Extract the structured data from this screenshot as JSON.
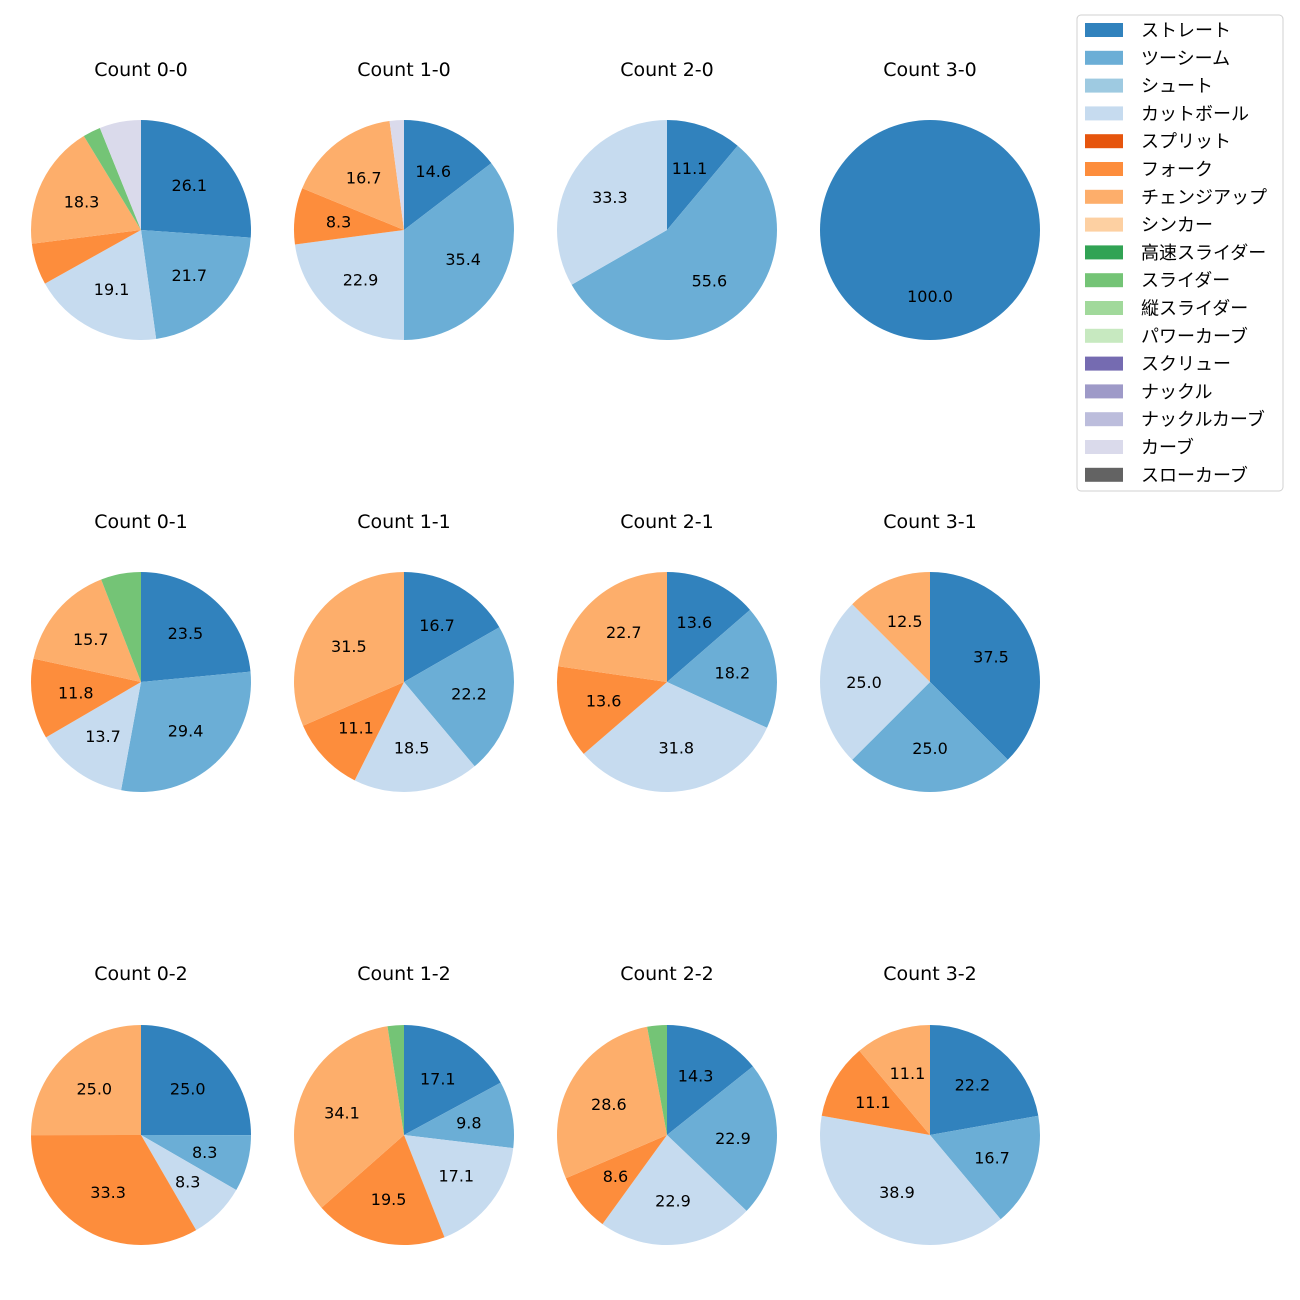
{
  "colors": {
    "ストレート": "#3182bd",
    "ツーシーム": "#6baed6",
    "シュート": "#9ecae1",
    "カットボール": "#c6dbef",
    "スプリット": "#e6550d",
    "フォーク": "#fd8d3c",
    "チェンジアップ": "#fdae6b",
    "シンカー": "#fdd0a2",
    "高速スライダー": "#31a354",
    "スライダー": "#74c476",
    "縦スライダー": "#a1d99b",
    "パワーカーブ": "#c7e9c0",
    "スクリュー": "#756bb1",
    "ナックル": "#9e9ac8",
    "ナックルカーブ": "#bcbddc",
    "カーブ": "#dadaeb",
    "スローカーブ": "#636363"
  },
  "chart_data": {
    "type": "pie",
    "legend_position": "top-right",
    "legend": [
      "ストレート",
      "ツーシーム",
      "シュート",
      "カットボール",
      "スプリット",
      "フォーク",
      "チェンジアップ",
      "シンカー",
      "高速スライダー",
      "スライダー",
      "縦スライダー",
      "パワーカーブ",
      "スクリュー",
      "ナックル",
      "ナックルカーブ",
      "カーブ",
      "スローカーブ"
    ],
    "charts": [
      {
        "title": "Count 0-0",
        "slices": [
          {
            "pitch": "ストレート",
            "value": 26.1,
            "label": "26.1"
          },
          {
            "pitch": "ツーシーム",
            "value": 21.7,
            "label": "21.7"
          },
          {
            "pitch": "カットボール",
            "value": 19.1,
            "label": "19.1"
          },
          {
            "pitch": "フォーク",
            "value": 6.1,
            "label": ""
          },
          {
            "pitch": "チェンジアップ",
            "value": 18.3,
            "label": "18.3"
          },
          {
            "pitch": "スライダー",
            "value": 2.6,
            "label": ""
          },
          {
            "pitch": "カーブ",
            "value": 6.1,
            "label": ""
          }
        ]
      },
      {
        "title": "Count 1-0",
        "slices": [
          {
            "pitch": "ストレート",
            "value": 14.6,
            "label": "14.6"
          },
          {
            "pitch": "ツーシーム",
            "value": 35.4,
            "label": "35.4"
          },
          {
            "pitch": "カットボール",
            "value": 22.9,
            "label": "22.9"
          },
          {
            "pitch": "フォーク",
            "value": 8.3,
            "label": "8.3"
          },
          {
            "pitch": "チェンジアップ",
            "value": 16.7,
            "label": "16.7"
          },
          {
            "pitch": "カーブ",
            "value": 2.1,
            "label": ""
          }
        ]
      },
      {
        "title": "Count 2-0",
        "slices": [
          {
            "pitch": "ストレート",
            "value": 11.1,
            "label": "11.1"
          },
          {
            "pitch": "ツーシーム",
            "value": 55.6,
            "label": "55.6"
          },
          {
            "pitch": "カットボール",
            "value": 33.3,
            "label": "33.3"
          }
        ]
      },
      {
        "title": "Count 3-0",
        "slices": [
          {
            "pitch": "ストレート",
            "value": 100.0,
            "label": "100.0"
          }
        ]
      },
      {
        "title": "Count 0-1",
        "slices": [
          {
            "pitch": "ストレート",
            "value": 23.5,
            "label": "23.5"
          },
          {
            "pitch": "ツーシーム",
            "value": 29.4,
            "label": "29.4"
          },
          {
            "pitch": "カットボール",
            "value": 13.7,
            "label": "13.7"
          },
          {
            "pitch": "フォーク",
            "value": 11.8,
            "label": "11.8"
          },
          {
            "pitch": "チェンジアップ",
            "value": 15.7,
            "label": "15.7"
          },
          {
            "pitch": "スライダー",
            "value": 5.9,
            "label": ""
          }
        ]
      },
      {
        "title": "Count 1-1",
        "slices": [
          {
            "pitch": "ストレート",
            "value": 16.7,
            "label": "16.7"
          },
          {
            "pitch": "ツーシーム",
            "value": 22.2,
            "label": "22.2"
          },
          {
            "pitch": "カットボール",
            "value": 18.5,
            "label": "18.5"
          },
          {
            "pitch": "フォーク",
            "value": 11.1,
            "label": "11.1"
          },
          {
            "pitch": "チェンジアップ",
            "value": 31.5,
            "label": "31.5"
          }
        ]
      },
      {
        "title": "Count 2-1",
        "slices": [
          {
            "pitch": "ストレート",
            "value": 13.6,
            "label": "13.6"
          },
          {
            "pitch": "ツーシーム",
            "value": 18.2,
            "label": "18.2"
          },
          {
            "pitch": "カットボール",
            "value": 31.8,
            "label": "31.8"
          },
          {
            "pitch": "フォーク",
            "value": 13.6,
            "label": "13.6"
          },
          {
            "pitch": "チェンジアップ",
            "value": 22.7,
            "label": "22.7"
          }
        ]
      },
      {
        "title": "Count 3-1",
        "slices": [
          {
            "pitch": "ストレート",
            "value": 37.5,
            "label": "37.5"
          },
          {
            "pitch": "ツーシーム",
            "value": 25.0,
            "label": "25.0"
          },
          {
            "pitch": "カットボール",
            "value": 25.0,
            "label": "25.0"
          },
          {
            "pitch": "チェンジアップ",
            "value": 12.5,
            "label": "12.5"
          }
        ]
      },
      {
        "title": "Count 0-2",
        "slices": [
          {
            "pitch": "ストレート",
            "value": 25.0,
            "label": "25.0"
          },
          {
            "pitch": "ツーシーム",
            "value": 8.3,
            "label": "8.3"
          },
          {
            "pitch": "カットボール",
            "value": 8.3,
            "label": "8.3"
          },
          {
            "pitch": "フォーク",
            "value": 33.3,
            "label": "33.3"
          },
          {
            "pitch": "チェンジアップ",
            "value": 25.0,
            "label": "25.0"
          }
        ]
      },
      {
        "title": "Count 1-2",
        "slices": [
          {
            "pitch": "ストレート",
            "value": 17.1,
            "label": "17.1"
          },
          {
            "pitch": "ツーシーム",
            "value": 9.8,
            "label": "9.8"
          },
          {
            "pitch": "カットボール",
            "value": 17.1,
            "label": "17.1"
          },
          {
            "pitch": "フォーク",
            "value": 19.5,
            "label": "19.5"
          },
          {
            "pitch": "チェンジアップ",
            "value": 34.1,
            "label": "34.1"
          },
          {
            "pitch": "スライダー",
            "value": 2.4,
            "label": ""
          }
        ]
      },
      {
        "title": "Count 2-2",
        "slices": [
          {
            "pitch": "ストレート",
            "value": 14.3,
            "label": "14.3"
          },
          {
            "pitch": "ツーシーム",
            "value": 22.9,
            "label": "22.9"
          },
          {
            "pitch": "カットボール",
            "value": 22.9,
            "label": "22.9"
          },
          {
            "pitch": "フォーク",
            "value": 8.6,
            "label": "8.6"
          },
          {
            "pitch": "チェンジアップ",
            "value": 28.6,
            "label": "28.6"
          },
          {
            "pitch": "スライダー",
            "value": 2.9,
            "label": ""
          }
        ]
      },
      {
        "title": "Count 3-2",
        "slices": [
          {
            "pitch": "ストレート",
            "value": 22.2,
            "label": "22.2"
          },
          {
            "pitch": "ツーシーム",
            "value": 16.7,
            "label": "16.7"
          },
          {
            "pitch": "カットボール",
            "value": 38.9,
            "label": "38.9"
          },
          {
            "pitch": "フォーク",
            "value": 11.1,
            "label": "11.1"
          },
          {
            "pitch": "チェンジアップ",
            "value": 11.1,
            "label": "11.1"
          }
        ]
      }
    ]
  }
}
